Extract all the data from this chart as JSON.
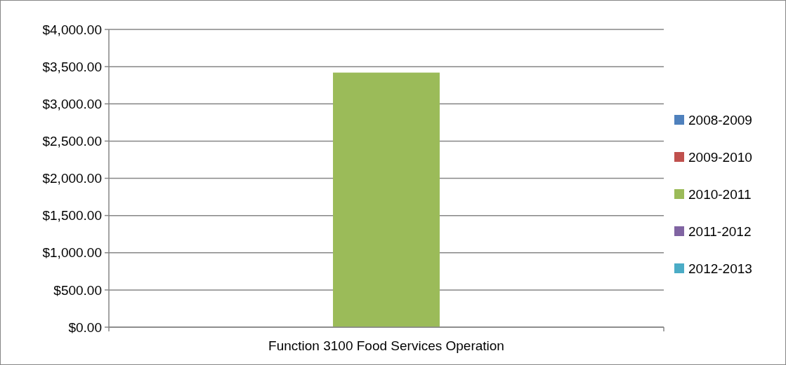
{
  "chart_data": {
    "type": "bar",
    "categories": [
      "Function 3100 Food Services Operation"
    ],
    "series": [
      {
        "name": "2008-2009",
        "color": "#4f81bd",
        "values": [
          0
        ]
      },
      {
        "name": "2009-2010",
        "color": "#c0504d",
        "values": [
          0
        ]
      },
      {
        "name": "2010-2011",
        "color": "#9bbb59",
        "values": [
          3420
        ]
      },
      {
        "name": "2011-2012",
        "color": "#8064a2",
        "values": [
          0
        ]
      },
      {
        "name": "2012-2013",
        "color": "#4bacc6",
        "values": [
          0
        ]
      }
    ],
    "ylim": [
      0,
      4000
    ],
    "yticks": [
      {
        "value": 0,
        "label": "$0.00"
      },
      {
        "value": 500,
        "label": "$500.00"
      },
      {
        "value": 1000,
        "label": "$1,000.00"
      },
      {
        "value": 1500,
        "label": "$1,500.00"
      },
      {
        "value": 2000,
        "label": "$2,000.00"
      },
      {
        "value": 2500,
        "label": "$2,500.00"
      },
      {
        "value": 3000,
        "label": "$3,000.00"
      },
      {
        "value": 3500,
        "label": "$3,500.00"
      },
      {
        "value": 4000,
        "label": "$4,000.00"
      }
    ],
    "grid": "y",
    "legend": "right"
  }
}
